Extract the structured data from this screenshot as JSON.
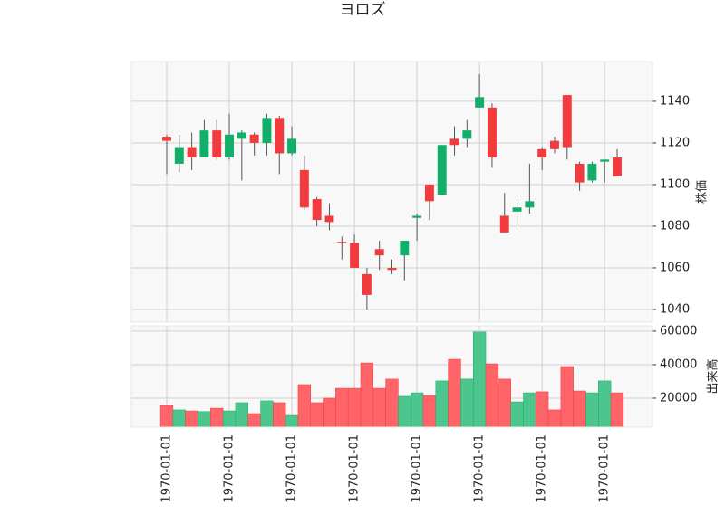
{
  "chart_data": {
    "type": "candlestick",
    "title": "ヨロズ",
    "categories": [
      "1970-01-01",
      null,
      null,
      null,
      null,
      "1970-01-01",
      null,
      null,
      null,
      null,
      "1970-01-01",
      null,
      null,
      null,
      null,
      "1970-01-01",
      null,
      null,
      null,
      null,
      "1970-01-01",
      null,
      null,
      null,
      null,
      "1970-01-01",
      null,
      null,
      null,
      null,
      "1970-01-01",
      null,
      null,
      null,
      null,
      "1970-01-01",
      null
    ],
    "open": [
      1123,
      1110,
      1118,
      1113,
      1126,
      1113,
      1122,
      1124,
      1120,
      1132,
      1115,
      1107,
      1093,
      1085,
      1072.5,
      1072,
      1057,
      1069,
      1060,
      1066,
      1084,
      1100,
      1095,
      1122,
      1122,
      1137,
      1137,
      1085,
      1087,
      1089,
      1117,
      1121,
      1143,
      1110,
      1102,
      1111,
      1113
    ],
    "high": [
      1124,
      1124,
      1125,
      1131,
      1131,
      1134,
      1126,
      1125,
      1134,
      1133,
      1128,
      1114,
      1094,
      1091,
      1075,
      1076,
      1060,
      1073,
      1064,
      1073,
      1086,
      1100,
      1119,
      1128,
      1131,
      1153,
      1139,
      1096,
      1093,
      1110,
      1118,
      1123,
      1143,
      1111,
      1111,
      1112,
      1117
    ],
    "low": [
      1105,
      1106,
      1107,
      1113,
      1112,
      1112,
      1102,
      1114,
      1114,
      1105,
      1114,
      1088,
      1080,
      1078,
      1064,
      1060,
      1040,
      1059,
      1057,
      1054,
      1073,
      1083,
      1095,
      1114,
      1118,
      1137,
      1108,
      1077,
      1080,
      1086,
      1107,
      1115,
      1112,
      1097,
      1101,
      1101,
      1104
    ],
    "close": [
      1121,
      1118,
      1113,
      1126,
      1113,
      1124,
      1125,
      1120,
      1132,
      1115,
      1122,
      1089,
      1083,
      1082,
      1072,
      1060,
      1047,
      1066,
      1059,
      1073,
      1085,
      1092,
      1119,
      1119,
      1126,
      1142,
      1113,
      1077,
      1089,
      1092,
      1113,
      1117,
      1118,
      1101,
      1110,
      1112,
      1104
    ],
    "volume": [
      15700,
      13000,
      12400,
      12000,
      14000,
      12400,
      17300,
      10800,
      18400,
      17300,
      9700,
      28100,
      17300,
      20000,
      25900,
      25900,
      41000,
      25900,
      31400,
      21100,
      23200,
      21600,
      30300,
      43200,
      31400,
      59500,
      40500,
      31400,
      17800,
      23200,
      23800,
      13000,
      38900,
      24300,
      23200,
      30300,
      23200
    ],
    "up_color": "#13ae6a",
    "down_color": "#f23b3f",
    "up_volume_color": "#4cc68d",
    "down_volume_color": "#ff6469",
    "ylabel": "株価",
    "volume_label": "出来高",
    "ylim": [
      1033.9,
      1159.1
    ],
    "yticks": [
      1040,
      1060,
      1080,
      1100,
      1120,
      1140
    ],
    "volume_ylim": [
      2700,
      63200
    ],
    "volume_yticks": [
      20000,
      40000,
      60000
    ],
    "grid": true
  }
}
